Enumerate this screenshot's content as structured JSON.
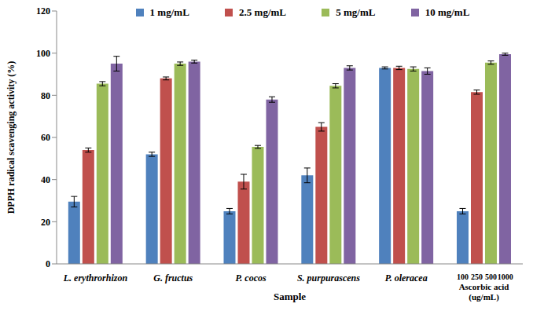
{
  "chart_data": {
    "type": "bar",
    "categories": [
      "L. erythrorhizon",
      "G. fructus",
      "P. cocos",
      "S. purpurascens",
      "P. oleracea",
      "Ascorbic acid (ug/mL)"
    ],
    "subcategory_labels": [
      null,
      null,
      null,
      null,
      null,
      [
        100,
        250,
        500,
        1000
      ]
    ],
    "series": [
      {
        "name": "1 mg/mL",
        "color": "#4f81bd",
        "values": [
          29.5,
          52,
          25,
          42,
          93,
          25
        ],
        "errors": [
          2.5,
          1,
          1.3,
          3.5,
          0.5,
          1.3
        ]
      },
      {
        "name": "2.5 mg/mL",
        "color": "#c0504d",
        "values": [
          54,
          88,
          39,
          65,
          93,
          81.5
        ],
        "errors": [
          1,
          0.7,
          3.5,
          2,
          0.8,
          1
        ]
      },
      {
        "name": "5 mg/mL",
        "color": "#9bbb59",
        "values": [
          85.5,
          95,
          55.5,
          84.5,
          92.5,
          95.5
        ],
        "errors": [
          1,
          0.8,
          0.7,
          1,
          1,
          0.8
        ]
      },
      {
        "name": "10 mg/mL",
        "color": "#8064a2",
        "values": [
          95,
          96,
          78,
          93,
          91.5,
          99.5
        ],
        "errors": [
          3.5,
          0.7,
          1.3,
          1,
          1.5,
          0.5
        ]
      }
    ],
    "x_label": "Sample",
    "y_label": "DPPH radical scavenging activity (%)",
    "ylim": [
      0,
      120
    ],
    "yticks": [
      0,
      20,
      40,
      60,
      80,
      100,
      120
    ],
    "legend": "top",
    "grid": false
  }
}
